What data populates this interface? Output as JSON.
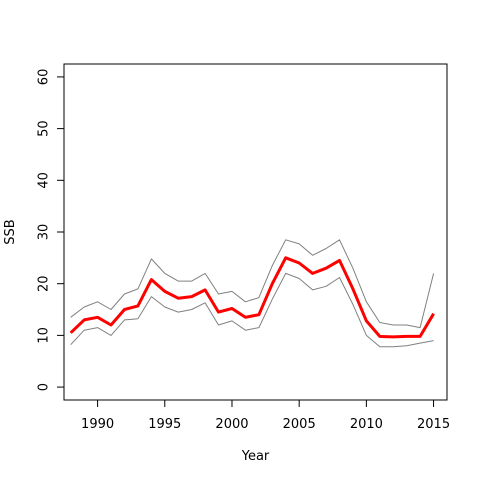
{
  "chart_data": {
    "type": "line",
    "xlabel": "Year",
    "ylabel": "SSB",
    "xlim": [
      1987.5,
      2016.0
    ],
    "ylim": [
      -2.5,
      62.5
    ],
    "x_ticks": [
      1990,
      1995,
      2000,
      2005,
      2010,
      2015
    ],
    "y_ticks": [
      0,
      10,
      20,
      30,
      40,
      50,
      60
    ],
    "grid": false,
    "x": [
      1988,
      1989,
      1990,
      1991,
      1992,
      1993,
      1994,
      1995,
      1996,
      1997,
      1998,
      1999,
      2000,
      2001,
      2002,
      2003,
      2004,
      2005,
      2006,
      2007,
      2008,
      2009,
      2010,
      2011,
      2012,
      2013,
      2014,
      2015
    ],
    "series": [
      {
        "role": "upper",
        "color": "#808080",
        "values": [
          13.5,
          15.5,
          16.5,
          15.0,
          18.0,
          19.0,
          24.8,
          22.0,
          20.5,
          20.5,
          22.0,
          18.0,
          18.5,
          16.5,
          17.3,
          23.5,
          28.5,
          27.7,
          25.5,
          26.8,
          28.5,
          23.0,
          16.5,
          12.5,
          12.0,
          12.0,
          11.5,
          22.0
        ]
      },
      {
        "role": "estimate",
        "color": "#ff0000",
        "values": [
          10.5,
          13.0,
          13.5,
          12.0,
          15.0,
          15.7,
          20.8,
          18.5,
          17.2,
          17.5,
          18.8,
          14.5,
          15.2,
          13.5,
          14.0,
          20.0,
          25.0,
          24.0,
          22.0,
          23.0,
          24.5,
          19.0,
          12.8,
          9.8,
          9.7,
          9.8,
          9.8,
          14.2
        ]
      },
      {
        "role": "lower",
        "color": "#808080",
        "values": [
          8.2,
          11.0,
          11.5,
          10.0,
          13.0,
          13.2,
          17.5,
          15.5,
          14.5,
          15.0,
          16.3,
          12.0,
          12.8,
          11.0,
          11.5,
          17.0,
          22.0,
          21.0,
          18.8,
          19.5,
          21.2,
          16.0,
          10.0,
          7.8,
          7.8,
          8.0,
          8.5,
          9.0
        ]
      }
    ]
  }
}
